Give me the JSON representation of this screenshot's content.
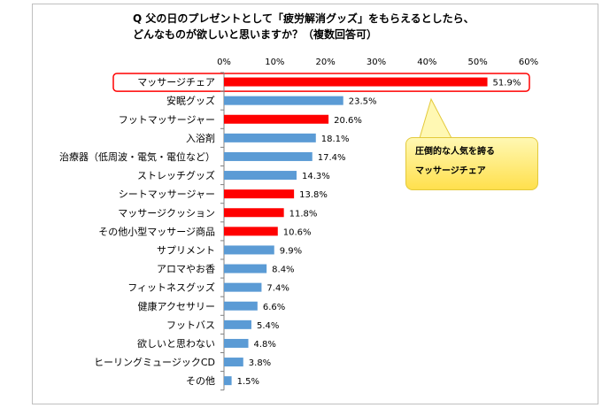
{
  "title_line1": "Q 父の日のプレゼントとして「疲労解消グッズ」をもらえるとしたら、",
  "title_line2": "どんなものが欲しいと思いますか？（複数回答可）",
  "callout_line1": "圧倒的な人気を誇る",
  "callout_line2": "マッサージチェア",
  "colors": {
    "blue": "#5b9bd5",
    "red": "#ff0000",
    "highlight_border": "#ff0000"
  },
  "chart_data": {
    "type": "bar",
    "orientation": "horizontal",
    "categories": [
      "マッサージチェア",
      "安眠グッズ",
      "フットマッサージャー",
      "入浴剤",
      "治療器（低周波・電気・電位など）",
      "ストレッチグッズ",
      "シートマッサージャー",
      "マッサージクッション",
      "その他小型マッサージ商品",
      "サプリメント",
      "アロマやお香",
      "フィットネスグッズ",
      "健康アクセサリー",
      "フットバス",
      "欲しいと思わない",
      "ヒーリングミュージックCD",
      "その他"
    ],
    "values": [
      51.9,
      23.5,
      20.6,
      18.1,
      17.4,
      14.3,
      13.8,
      11.8,
      10.6,
      9.9,
      8.4,
      7.4,
      6.6,
      5.4,
      4.8,
      3.8,
      1.5
    ],
    "value_labels": [
      "51.9%",
      "23.5%",
      "20.6%",
      "18.1%",
      "17.4%",
      "14.3%",
      "13.8%",
      "11.8%",
      "10.6%",
      "9.9%",
      "8.4%",
      "7.4%",
      "6.6%",
      "5.4%",
      "4.8%",
      "3.8%",
      "1.5%"
    ],
    "bar_colors": [
      "red",
      "blue",
      "red",
      "blue",
      "blue",
      "blue",
      "red",
      "red",
      "red",
      "blue",
      "blue",
      "blue",
      "blue",
      "blue",
      "blue",
      "blue",
      "blue"
    ],
    "xlim": [
      0,
      60
    ],
    "xticks": [
      "0%",
      "10%",
      "20%",
      "30%",
      "40%",
      "50%",
      "60%"
    ],
    "highlighted_category": "マッサージチェア"
  }
}
